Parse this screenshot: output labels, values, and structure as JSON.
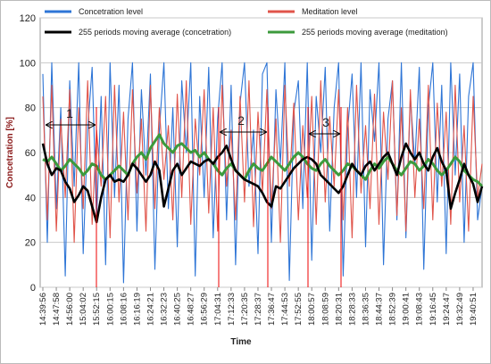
{
  "chart_data": {
    "type": "line",
    "xlabel": "Time",
    "ylabel": "Concetration [%]",
    "categories": [
      "14:39:56",
      null,
      null,
      "14:47:58",
      null,
      null,
      "14:56:00",
      null,
      null,
      "15:04:02",
      null,
      null,
      "15:52:15",
      null,
      null,
      "16:00:15",
      null,
      null,
      "16:08:16",
      null,
      null,
      "16:16:19",
      null,
      null,
      "16:24:21",
      null,
      null,
      "16:32:23",
      null,
      null,
      "16:40:25",
      null,
      null,
      "16:48:27",
      null,
      null,
      "16:56:29",
      null,
      null,
      "17:04:31",
      null,
      null,
      "17:12:33",
      null,
      null,
      "17:20:35",
      null,
      null,
      "17:28:37",
      null,
      null,
      "17:36:47",
      null,
      null,
      "17:44:53",
      null,
      null,
      "17:52:55",
      null,
      null,
      "18:00:57",
      null,
      null,
      "18:08:59",
      null,
      null,
      "18:20:31",
      null,
      null,
      "18:28:33",
      null,
      null,
      "18:36:35",
      null,
      null,
      "18:44:37",
      null,
      null,
      "18:52:39",
      null,
      null,
      "19:00:41",
      null,
      null,
      "19:08:43",
      null,
      null,
      "19:16:45",
      null,
      null,
      "19:24:47",
      null,
      null,
      "19:32:49",
      null,
      null,
      "19:40:51",
      null,
      null
    ],
    "series": [
      {
        "name": "Concetration level",
        "color": "#2e75d6",
        "values": [
          95,
          20,
          100,
          35,
          80,
          5,
          92,
          45,
          100,
          15,
          70,
          98,
          30,
          85,
          10,
          100,
          40,
          90,
          2,
          75,
          100,
          25,
          88,
          50,
          95,
          8,
          70,
          100,
          35,
          80,
          18,
          92,
          60,
          100,
          5,
          85,
          40,
          98,
          22,
          75,
          100,
          30,
          90,
          10,
          82,
          100,
          45,
          70,
          15,
          95,
          100,
          20,
          88,
          55,
          100,
          3,
          78,
          92,
          35,
          100,
          12,
          85,
          60,
          98,
          25,
          80,
          100,
          5,
          70,
          95,
          40,
          100,
          18,
          88,
          65,
          100,
          10,
          75,
          92,
          30,
          100,
          22,
          85,
          55,
          98,
          8,
          80,
          100,
          38,
          90,
          15,
          100,
          50,
          95,
          20,
          85,
          100,
          30,
          45
        ]
      },
      {
        "name": "Meditation level",
        "color": "#e0544a",
        "values": [
          85,
          30,
          90,
          25,
          75,
          40,
          88,
          20,
          80,
          35,
          92,
          28,
          70,
          45,
          85,
          22,
          90,
          38,
          78,
          30,
          88,
          42,
          75,
          25,
          90,
          35,
          80,
          48,
          72,
          30,
          86,
          40,
          92,
          28,
          75,
          50,
          88,
          33,
          80,
          25,
          90,
          45,
          70,
          30,
          85,
          38,
          92,
          27,
          78,
          42,
          88,
          35,
          75,
          20,
          90,
          45,
          82,
          30,
          72,
          40,
          85,
          28,
          92,
          38,
          76,
          45,
          88,
          30,
          80,
          22,
          90,
          42,
          72,
          35,
          86,
          28,
          78,
          48,
          92,
          32,
          80,
          25,
          88,
          40,
          75,
          35,
          90,
          30,
          82,
          45,
          78,
          28,
          90,
          38,
          72,
          25,
          85,
          40,
          55
        ]
      },
      {
        "name": "255 periods moving average (concetration)",
        "color": "#000000",
        "values": [
          64,
          55,
          50,
          53,
          52,
          47,
          44,
          38,
          41,
          45,
          43,
          36,
          29,
          40,
          48,
          50,
          47,
          48,
          47,
          50,
          55,
          53,
          50,
          47,
          50,
          56,
          52,
          36,
          44,
          52,
          55,
          50,
          53,
          56,
          55,
          54,
          56,
          57,
          55,
          58,
          60,
          63,
          57,
          52,
          50,
          48,
          47,
          46,
          45,
          42,
          38,
          36,
          45,
          44,
          47,
          50,
          53,
          55,
          57,
          58,
          57,
          55,
          50,
          48,
          46,
          44,
          42,
          45,
          50,
          55,
          52,
          50,
          54,
          56,
          52,
          55,
          58,
          60,
          55,
          50,
          58,
          64,
          60,
          57,
          60,
          55,
          52,
          58,
          62,
          56,
          52,
          35,
          42,
          48,
          55,
          50,
          46,
          38,
          45
        ]
      },
      {
        "name": "255 periods moving average (meditation)",
        "color": "#3c9a3c",
        "values": [
          57,
          56,
          58,
          55,
          52,
          54,
          57,
          55,
          53,
          50,
          52,
          55,
          54,
          50,
          48,
          50,
          52,
          54,
          52,
          50,
          55,
          58,
          60,
          57,
          62,
          65,
          68,
          64,
          62,
          60,
          63,
          64,
          62,
          60,
          61,
          58,
          60,
          57,
          55,
          52,
          50,
          53,
          55,
          52,
          50,
          48,
          52,
          55,
          53,
          52,
          55,
          58,
          56,
          54,
          52,
          55,
          58,
          60,
          58,
          55,
          53,
          52,
          55,
          57,
          54,
          52,
          50,
          52,
          55,
          54,
          52,
          50,
          48,
          52,
          55,
          53,
          56,
          58,
          55,
          52,
          50,
          53,
          56,
          55,
          52,
          54,
          57,
          55,
          52,
          50,
          52,
          55,
          58,
          56,
          52,
          50,
          48,
          47,
          45
        ]
      }
    ],
    "ylim": [
      0,
      120
    ],
    "yticks": [
      0,
      20,
      40,
      60,
      80,
      100,
      120
    ],
    "grid": true,
    "legend": "top",
    "annotations": [
      {
        "label": "1"
      },
      {
        "label": "2"
      },
      {
        "label": "3"
      }
    ]
  }
}
